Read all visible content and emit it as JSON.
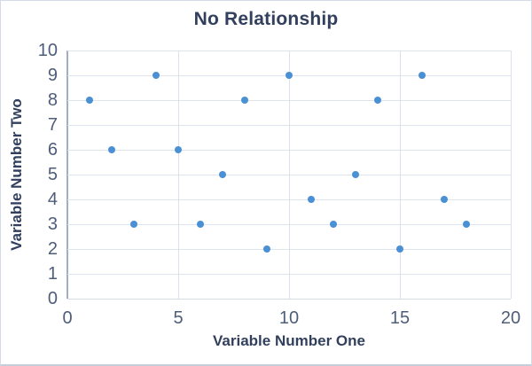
{
  "chart_data": {
    "type": "scatter",
    "title": "No Relationship",
    "xlabel": "Variable Number One",
    "ylabel": "Variable Number Two",
    "xlim": [
      0,
      20
    ],
    "ylim": [
      0,
      10
    ],
    "x_ticks": [
      0,
      5,
      10,
      15,
      20
    ],
    "y_ticks": [
      0,
      1,
      2,
      3,
      4,
      5,
      6,
      7,
      8,
      9,
      10
    ],
    "grid": true,
    "legend": false,
    "marker_color": "#4a90d5",
    "points": [
      [
        1,
        8
      ],
      [
        2,
        6
      ],
      [
        3,
        3
      ],
      [
        4,
        9
      ],
      [
        5,
        6
      ],
      [
        6,
        3
      ],
      [
        7,
        5
      ],
      [
        8,
        8
      ],
      [
        9,
        2
      ],
      [
        10,
        9
      ],
      [
        11,
        4
      ],
      [
        12,
        3
      ],
      [
        13,
        5
      ],
      [
        14,
        8
      ],
      [
        15,
        2
      ],
      [
        16,
        9
      ],
      [
        17,
        4
      ],
      [
        18,
        3
      ]
    ]
  },
  "colors": {
    "background": "#ffffff",
    "chart_border": "#d5dbe6",
    "title_text": "#32405e",
    "tick_text": "#4e5d7a",
    "gridline": "#dfe5ee",
    "axis_line_left": "#9fafc1",
    "axis_line_bottom": "#d3dbe6",
    "marker": "#4a90d5"
  }
}
